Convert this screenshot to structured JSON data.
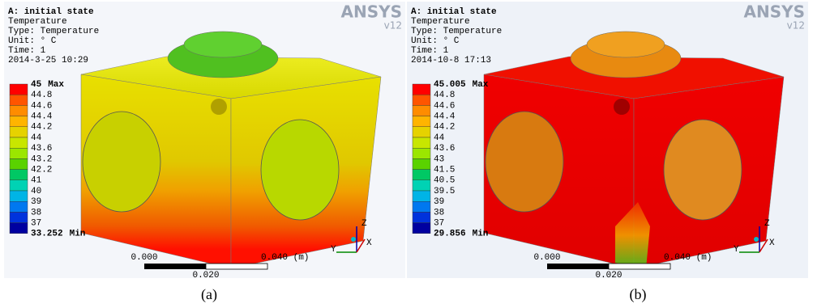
{
  "panels": [
    {
      "header": [
        "A: initial state",
        "Temperature",
        "Type: Temperature",
        "Unit: ° C",
        "Time: 1",
        "2014-3-25 10:29"
      ],
      "logo": "ANSYS",
      "version": "v12",
      "legend": {
        "labels": [
          "45",
          "44.8",
          "44.6",
          "44.4",
          "44.2",
          "44",
          "43.6",
          "43.2",
          "42.2",
          "41",
          "40",
          "39",
          "38",
          "37",
          "33.252"
        ],
        "max_tag": "Max",
        "min_tag": "Min",
        "colors": [
          "#ff0000",
          "#ff5500",
          "#ff8c00",
          "#ffb400",
          "#e6d200",
          "#c8e600",
          "#9be600",
          "#5ad200",
          "#00c864",
          "#00d2b4",
          "#00b4e6",
          "#0078f0",
          "#0032dc",
          "#0000a0"
        ]
      },
      "scale": [
        "0.000",
        "0.040 (m)",
        "0.020"
      ],
      "axes": [
        "Z",
        "Y",
        "X"
      ],
      "caption": "(a)"
    },
    {
      "header": [
        "A: initial state",
        "Temperature",
        "Type: Temperature",
        "Unit: ° C",
        "Time: 1",
        "2014-10-8 17:13"
      ],
      "logo": "ANSYS",
      "version": "v12",
      "legend": {
        "labels": [
          "45.005",
          "44.8",
          "44.6",
          "44.4",
          "44.2",
          "44",
          "43.6",
          "43",
          "41.5",
          "40.5",
          "39.5",
          "39",
          "38",
          "37",
          "29.856"
        ],
        "max_tag": "Max",
        "min_tag": "Min",
        "colors": [
          "#ff0000",
          "#ff5500",
          "#ff8c00",
          "#ffb400",
          "#e6d200",
          "#c8e600",
          "#9be600",
          "#5ad200",
          "#00c864",
          "#00d2b4",
          "#00b4e6",
          "#0078f0",
          "#0032dc",
          "#0000a0"
        ]
      },
      "scale": [
        "0.000",
        "0.040 (m)",
        "0.020"
      ],
      "axes": [
        "Z",
        "Y",
        "X"
      ],
      "caption": "(b)"
    }
  ]
}
